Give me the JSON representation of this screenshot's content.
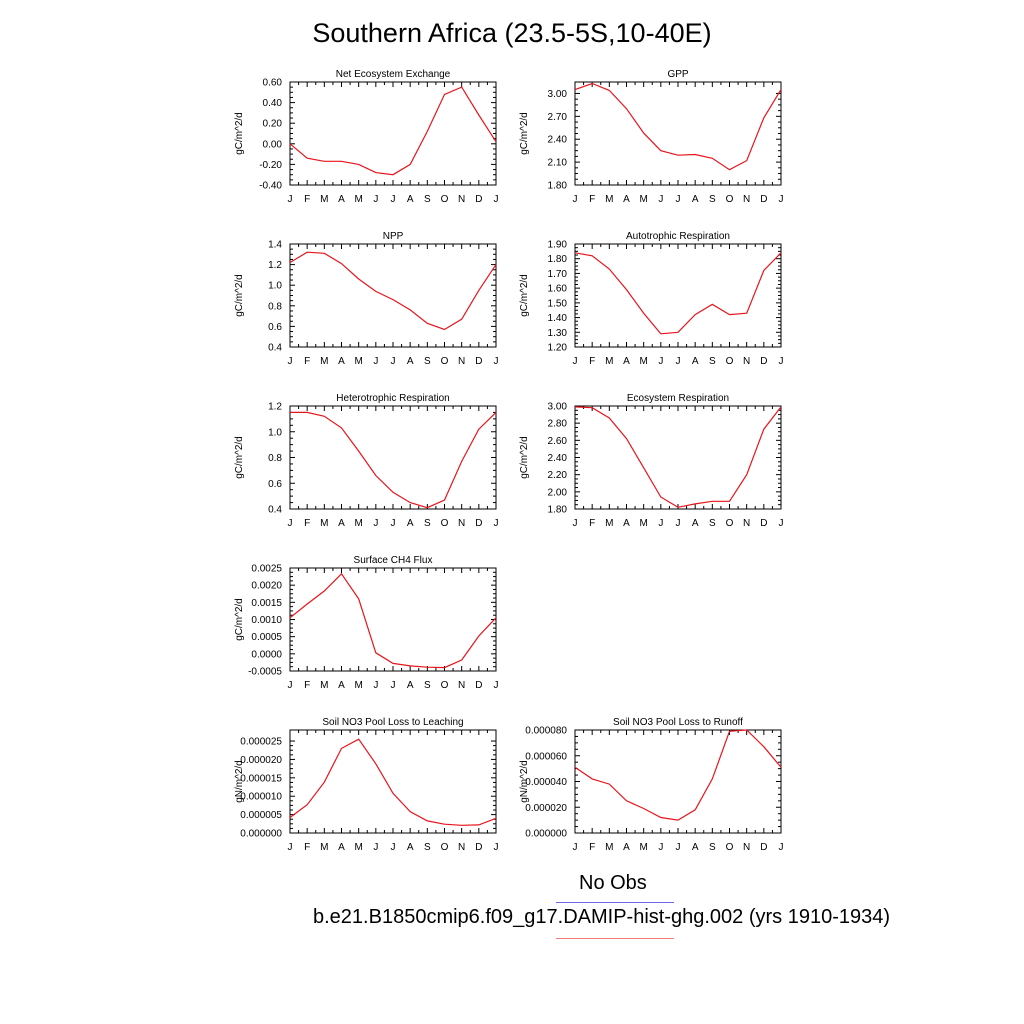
{
  "page": {
    "title": "Southern Africa (23.5-5S,10-40E)"
  },
  "legend": {
    "obs_label": "No Obs",
    "model_label": "b.e21.B1850cmip6.f09_g17.DAMIP-hist-ghg.002 (yrs 1910-1934)",
    "obs_color": "#6a6ae8",
    "model_color": "#f07a7a"
  },
  "series_color": "#e8141c",
  "chart_data": [
    {
      "type": "line",
      "title": "Net Ecosystem Exchange",
      "ylabel": "gC/m^2/d",
      "categories": [
        "J",
        "F",
        "M",
        "A",
        "M",
        "J",
        "J",
        "A",
        "S",
        "O",
        "N",
        "D",
        "J"
      ],
      "yticks": [
        "0.60",
        "0.40",
        "0.20",
        "0.00",
        "-0.20",
        "-0.40"
      ],
      "ylim": [
        -0.4,
        0.6
      ],
      "values": [
        0.0,
        -0.14,
        -0.17,
        -0.17,
        -0.2,
        -0.28,
        -0.3,
        -0.2,
        0.12,
        0.48,
        0.55,
        0.28,
        0.02
      ]
    },
    {
      "type": "line",
      "title": "GPP",
      "ylabel": "gC/m^2/d",
      "categories": [
        "J",
        "F",
        "M",
        "A",
        "M",
        "J",
        "J",
        "A",
        "S",
        "O",
        "N",
        "D",
        "J"
      ],
      "yticks": [
        "3.00",
        "2.70",
        "2.40",
        "2.10",
        "1.80"
      ],
      "ylim": [
        1.8,
        3.15
      ],
      "values": [
        3.05,
        3.13,
        3.04,
        2.8,
        2.48,
        2.25,
        2.19,
        2.2,
        2.15,
        2.0,
        2.12,
        2.68,
        3.05
      ]
    },
    {
      "type": "line",
      "title": "NPP",
      "ylabel": "gC/m^2/d",
      "categories": [
        "J",
        "F",
        "M",
        "A",
        "M",
        "J",
        "J",
        "A",
        "S",
        "O",
        "N",
        "D",
        "J"
      ],
      "yticks": [
        "1.4",
        "1.2",
        "1.0",
        "0.8",
        "0.6",
        "0.4"
      ],
      "ylim": [
        0.4,
        1.4
      ],
      "values": [
        1.22,
        1.32,
        1.31,
        1.21,
        1.06,
        0.94,
        0.86,
        0.76,
        0.63,
        0.57,
        0.67,
        0.95,
        1.2
      ]
    },
    {
      "type": "line",
      "title": "Autotrophic Respiration",
      "ylabel": "gC/m^2/d",
      "categories": [
        "J",
        "F",
        "M",
        "A",
        "M",
        "J",
        "J",
        "A",
        "S",
        "O",
        "N",
        "D",
        "J"
      ],
      "yticks": [
        "1.90",
        "1.80",
        "1.70",
        "1.60",
        "1.50",
        "1.40",
        "1.30",
        "1.20"
      ],
      "ylim": [
        1.2,
        1.9
      ],
      "values": [
        1.84,
        1.82,
        1.73,
        1.59,
        1.43,
        1.29,
        1.3,
        1.42,
        1.49,
        1.42,
        1.43,
        1.72,
        1.84
      ]
    },
    {
      "type": "line",
      "title": "Heterotrophic Respiration",
      "ylabel": "gC/m^2/d",
      "categories": [
        "J",
        "F",
        "M",
        "A",
        "M",
        "J",
        "J",
        "A",
        "S",
        "O",
        "N",
        "D",
        "J"
      ],
      "yticks": [
        "1.2",
        "1.0",
        "0.8",
        "0.6",
        "0.4"
      ],
      "ylim": [
        0.4,
        1.2
      ],
      "values": [
        1.15,
        1.15,
        1.12,
        1.03,
        0.85,
        0.66,
        0.53,
        0.45,
        0.41,
        0.47,
        0.77,
        1.02,
        1.15
      ]
    },
    {
      "type": "line",
      "title": "Ecosystem Respiration",
      "ylabel": "gC/m^2/d",
      "categories": [
        "J",
        "F",
        "M",
        "A",
        "M",
        "J",
        "J",
        "A",
        "S",
        "O",
        "N",
        "D",
        "J"
      ],
      "yticks": [
        "3.00",
        "2.80",
        "2.60",
        "2.40",
        "2.20",
        "2.00",
        "1.80"
      ],
      "ylim": [
        1.8,
        3.0
      ],
      "values": [
        2.99,
        2.98,
        2.86,
        2.62,
        2.28,
        1.94,
        1.82,
        1.86,
        1.89,
        1.89,
        2.2,
        2.73,
        2.99
      ]
    },
    {
      "type": "line",
      "title": "Surface CH4 Flux",
      "ylabel": "gC/m^2/d",
      "categories": [
        "J",
        "F",
        "M",
        "A",
        "M",
        "J",
        "J",
        "A",
        "S",
        "O",
        "N",
        "D",
        "J"
      ],
      "yticks": [
        "0.0025",
        "0.0020",
        "0.0015",
        "0.0010",
        "0.0005",
        "0.0000",
        "-0.0005"
      ],
      "ylim": [
        -0.0005,
        0.0025
      ],
      "values": [
        0.00105,
        0.00145,
        0.00183,
        0.00233,
        0.0016,
        3e-05,
        -0.00028,
        -0.00035,
        -0.00039,
        -0.0004,
        -0.00018,
        0.00052,
        0.00105
      ]
    },
    {
      "type": "line",
      "title": "Soil NO3 Pool Loss to Leaching",
      "ylabel": "gN/m^2/d",
      "categories": [
        "J",
        "F",
        "M",
        "A",
        "M",
        "J",
        "J",
        "A",
        "S",
        "O",
        "N",
        "D",
        "J"
      ],
      "yticks": [
        "0.000025",
        "0.000020",
        "0.000015",
        "0.000010",
        "0.000005",
        "0.000000"
      ],
      "ylim": [
        0,
        2.8e-05
      ],
      "values": [
        4.2e-06,
        7.7e-06,
        1.38e-05,
        2.3e-05,
        2.55e-05,
        1.88e-05,
        1.08e-05,
        5.8e-06,
        3.3e-06,
        2.4e-06,
        2.1e-06,
        2.2e-06,
        4e-06
      ]
    },
    {
      "type": "line",
      "title": "Soil NO3 Pool Loss to Runoff",
      "ylabel": "gN/m^2/d",
      "categories": [
        "J",
        "F",
        "M",
        "A",
        "M",
        "J",
        "J",
        "A",
        "S",
        "O",
        "N",
        "D",
        "J"
      ],
      "yticks": [
        "0.000080",
        "0.000060",
        "0.000040",
        "0.000020",
        "0.000000"
      ],
      "ylim": [
        0,
        8e-05
      ],
      "values": [
        5.1e-05,
        4.2e-05,
        3.8e-05,
        2.5e-05,
        1.9e-05,
        1.2e-05,
        1e-05,
        1.8e-05,
        4.2e-05,
        7.9e-05,
        8e-05,
        6.7e-05,
        5.1e-05
      ]
    }
  ]
}
